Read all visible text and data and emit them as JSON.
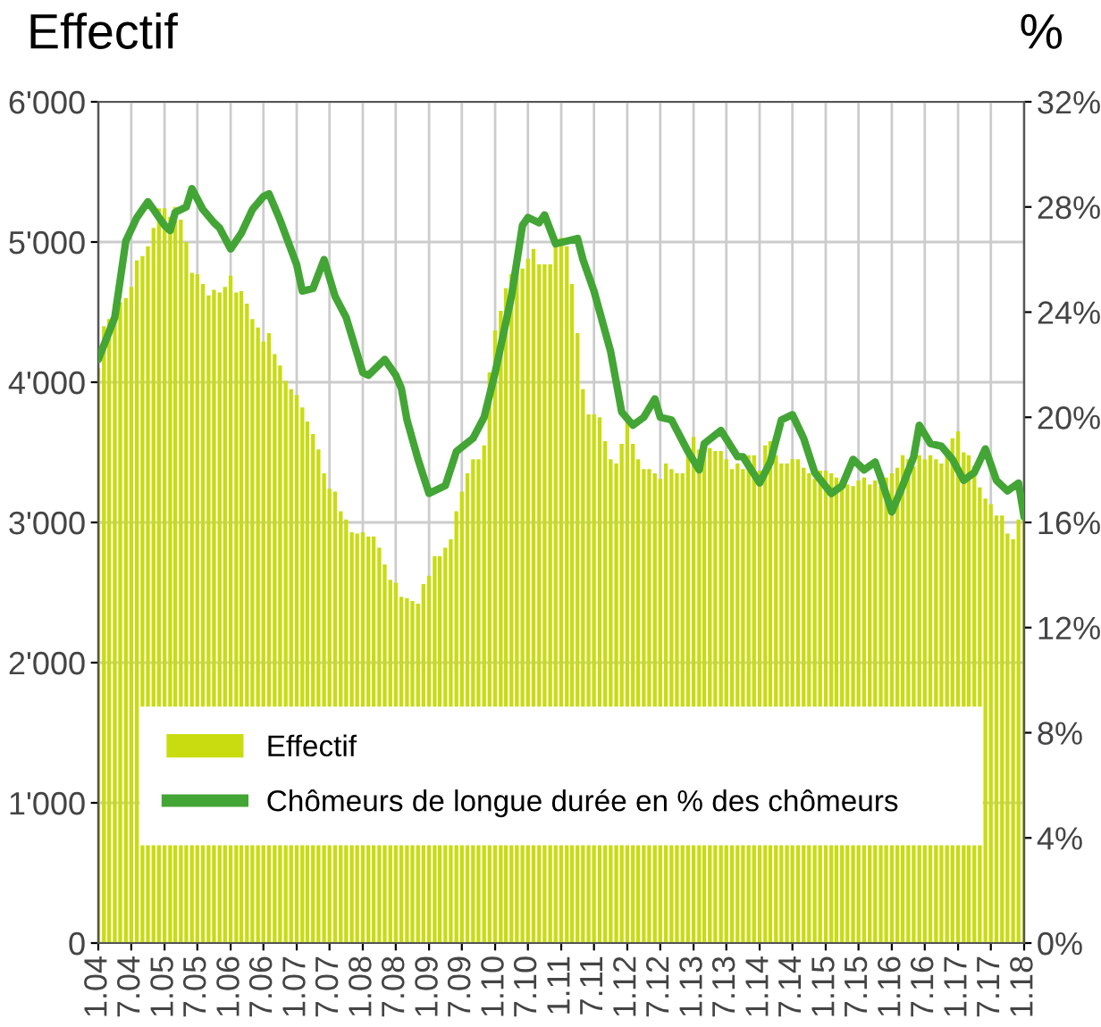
{
  "chart_data": {
    "type": "bar",
    "ylabel": "Effectif",
    "y2label": "%",
    "x": [
      "2004-01",
      "2004-02",
      "2004-03",
      "2004-04",
      "2004-05",
      "2004-06",
      "2004-07",
      "2004-08",
      "2004-09",
      "2004-10",
      "2004-11",
      "2004-12",
      "2005-01",
      "2005-02",
      "2005-03",
      "2005-04",
      "2005-05",
      "2005-06",
      "2005-07",
      "2005-08",
      "2005-09",
      "2005-10",
      "2005-11",
      "2005-12",
      "2006-01",
      "2006-02",
      "2006-03",
      "2006-04",
      "2006-05",
      "2006-06",
      "2006-07",
      "2006-08",
      "2006-09",
      "2006-10",
      "2006-11",
      "2006-12",
      "2007-01",
      "2007-02",
      "2007-03",
      "2007-04",
      "2007-05",
      "2007-06",
      "2007-07",
      "2007-08",
      "2007-09",
      "2007-10",
      "2007-11",
      "2007-12",
      "2008-01",
      "2008-02",
      "2008-03",
      "2008-04",
      "2008-05",
      "2008-06",
      "2008-07",
      "2008-08",
      "2008-09",
      "2008-10",
      "2008-11",
      "2008-12",
      "2009-01",
      "2009-02",
      "2009-03",
      "2009-04",
      "2009-05",
      "2009-06",
      "2009-07",
      "2009-08",
      "2009-09",
      "2009-10",
      "2009-11",
      "2009-12",
      "2010-01",
      "2010-02",
      "2010-03",
      "2010-04",
      "2010-05",
      "2010-06",
      "2010-07",
      "2010-08",
      "2010-09",
      "2010-10",
      "2010-11",
      "2010-12",
      "2011-01",
      "2011-02",
      "2011-03",
      "2011-04",
      "2011-05",
      "2011-06",
      "2011-07",
      "2011-08",
      "2011-09",
      "2011-10",
      "2011-11",
      "2011-12",
      "2012-01",
      "2012-02",
      "2012-03",
      "2012-04",
      "2012-05",
      "2012-06",
      "2012-07",
      "2012-08",
      "2012-09",
      "2012-10",
      "2012-11",
      "2012-12",
      "2013-01",
      "2013-02",
      "2013-03",
      "2013-04",
      "2013-05",
      "2013-06",
      "2013-07",
      "2013-08",
      "2013-09",
      "2013-10",
      "2013-11",
      "2013-12",
      "2014-01",
      "2014-02",
      "2014-03",
      "2014-04",
      "2014-05",
      "2014-06",
      "2014-07",
      "2014-08",
      "2014-09",
      "2014-10",
      "2014-11",
      "2014-12",
      "2015-01",
      "2015-02",
      "2015-03",
      "2015-04",
      "2015-05",
      "2015-06",
      "2015-07",
      "2015-08",
      "2015-09",
      "2015-10",
      "2015-11",
      "2015-12",
      "2016-01",
      "2016-02",
      "2016-03",
      "2016-04",
      "2016-05",
      "2016-06",
      "2016-07",
      "2016-08",
      "2016-09",
      "2016-10",
      "2016-11",
      "2016-12",
      "2017-01",
      "2017-02",
      "2017-03",
      "2017-04",
      "2017-05",
      "2017-06",
      "2017-07",
      "2017-08",
      "2017-09",
      "2017-10",
      "2017-11",
      "2017-12",
      "2018-01"
    ],
    "series": [
      {
        "name": "Effectif",
        "color": "#c8dc10",
        "values": [
          4100,
          4400,
          4450,
          4560,
          4570,
          4600,
          4680,
          4870,
          4900,
          4970,
          5100,
          5240,
          5240,
          5180,
          5250,
          5160,
          5000,
          4780,
          4770,
          4700,
          4620,
          4660,
          4640,
          4680,
          4760,
          4640,
          4650,
          4560,
          4450,
          4390,
          4290,
          4350,
          4200,
          4120,
          4010,
          3950,
          3910,
          3820,
          3720,
          3630,
          3520,
          3350,
          3240,
          3220,
          3080,
          3020,
          2930,
          2920,
          2930,
          2900,
          2900,
          2820,
          2700,
          2590,
          2570,
          2470,
          2460,
          2440,
          2420,
          2560,
          2620,
          2760,
          2760,
          2820,
          2880,
          3080,
          3220,
          3350,
          3450,
          3450,
          3550,
          4070,
          4370,
          4510,
          4670,
          4770,
          4800,
          4810,
          4880,
          4950,
          4840,
          4840,
          4840,
          4970,
          5030,
          4970,
          4700,
          4350,
          3950,
          3770,
          3770,
          3750,
          3580,
          3450,
          3420,
          3560,
          3730,
          3560,
          3450,
          3380,
          3380,
          3350,
          3310,
          3420,
          3380,
          3350,
          3350,
          3500,
          3610,
          3520,
          3540,
          3530,
          3510,
          3510,
          3450,
          3380,
          3420,
          3380,
          3480,
          3480,
          3370,
          3550,
          3580,
          3480,
          3420,
          3420,
          3450,
          3450,
          3390,
          3350,
          3310,
          3370,
          3370,
          3350,
          3320,
          3270,
          3270,
          3260,
          3300,
          3320,
          3270,
          3300,
          3260,
          3320,
          3350,
          3390,
          3480,
          3450,
          3400,
          3480,
          3450,
          3480,
          3450,
          3420,
          3500,
          3600,
          3650,
          3500,
          3480,
          3400,
          3250,
          3170,
          3130,
          3050,
          3050,
          2920,
          2880,
          3020,
          3020
        ]
      },
      {
        "name": "Chômeurs de longue durée en % des chômeurs",
        "type": "line",
        "axis": "y2",
        "color": "#43a535",
        "x": [
          "2004-01",
          "2004-04",
          "2004-06",
          "2004-08",
          "2004-10",
          "2004-11",
          "2005-01",
          "2005-02",
          "2005-03",
          "2005-05",
          "2005-06",
          "2005-08",
          "2005-10",
          "2005-11",
          "2006-01",
          "2006-03",
          "2006-05",
          "2006-07",
          "2006-08",
          "2006-10",
          "2007-01",
          "2007-02",
          "2007-04",
          "2007-06",
          "2007-08",
          "2007-10",
          "2008-01",
          "2008-02",
          "2008-05",
          "2008-07",
          "2008-08",
          "2008-09",
          "2008-11",
          "2009-01",
          "2009-04",
          "2009-06",
          "2009-09",
          "2009-11",
          "2010-01",
          "2010-04",
          "2010-06",
          "2010-07",
          "2010-09",
          "2010-10",
          "2010-12",
          "2011-02",
          "2011-04",
          "2011-05",
          "2011-07",
          "2011-10",
          "2011-12",
          "2012-02",
          "2012-04",
          "2012-06",
          "2012-07",
          "2012-09",
          "2012-12",
          "2013-02",
          "2013-03",
          "2013-06",
          "2013-09",
          "2013-10",
          "2014-01",
          "2014-03",
          "2014-05",
          "2014-07",
          "2014-09",
          "2014-11",
          "2015-02",
          "2015-04",
          "2015-06",
          "2015-08",
          "2015-10",
          "2015-11",
          "2016-01",
          "2016-03",
          "2016-05",
          "2016-06",
          "2016-08",
          "2016-10",
          "2016-12",
          "2017-02",
          "2017-04",
          "2017-06",
          "2017-08",
          "2017-10",
          "2017-12",
          "2018-01"
        ],
        "values": [
          22.2,
          23.8,
          26.7,
          27.6,
          28.2,
          27.9,
          27.3,
          27.1,
          27.8,
          28.0,
          28.7,
          27.9,
          27.4,
          27.2,
          26.4,
          27.0,
          27.9,
          28.4,
          28.5,
          27.5,
          25.8,
          24.8,
          24.9,
          26.0,
          24.6,
          23.8,
          21.7,
          21.6,
          22.2,
          21.6,
          21.1,
          19.9,
          18.4,
          17.1,
          17.4,
          18.7,
          19.2,
          20.0,
          21.7,
          24.6,
          27.3,
          27.6,
          27.4,
          27.7,
          26.6,
          26.7,
          26.8,
          26.0,
          24.8,
          22.5,
          20.2,
          19.7,
          20.0,
          20.7,
          20.0,
          19.9,
          18.7,
          18.0,
          19.0,
          19.5,
          18.5,
          18.5,
          17.5,
          18.3,
          19.9,
          20.1,
          19.2,
          17.9,
          17.1,
          17.4,
          18.4,
          18.0,
          18.3,
          17.7,
          16.4,
          17.4,
          18.5,
          19.7,
          19.0,
          18.9,
          18.4,
          17.6,
          17.9,
          18.8,
          17.6,
          17.2,
          17.5,
          16.2
        ]
      }
    ],
    "xlim": [
      "2004-01",
      "2018-01"
    ],
    "xticks": [
      {
        "value": "2004-01",
        "label": "1.04"
      },
      {
        "value": "2004-07",
        "label": "7.04"
      },
      {
        "value": "2005-01",
        "label": "1.05"
      },
      {
        "value": "2005-07",
        "label": "7.05"
      },
      {
        "value": "2006-01",
        "label": "1.06"
      },
      {
        "value": "2006-07",
        "label": "7.06"
      },
      {
        "value": "2007-01",
        "label": "1.07"
      },
      {
        "value": "2007-07",
        "label": "7.07"
      },
      {
        "value": "2008-01",
        "label": "1.08"
      },
      {
        "value": "2008-07",
        "label": "7.08"
      },
      {
        "value": "2009-01",
        "label": "1.09"
      },
      {
        "value": "2009-07",
        "label": "7.09"
      },
      {
        "value": "2010-01",
        "label": "1.10"
      },
      {
        "value": "2010-07",
        "label": "7.10"
      },
      {
        "value": "2011-01",
        "label": "1.11"
      },
      {
        "value": "2011-07",
        "label": "7.11"
      },
      {
        "value": "2012-01",
        "label": "1.12"
      },
      {
        "value": "2012-07",
        "label": "7.12"
      },
      {
        "value": "2013-01",
        "label": "1.13"
      },
      {
        "value": "2013-07",
        "label": "7.13"
      },
      {
        "value": "2014-01",
        "label": "1.14"
      },
      {
        "value": "2014-07",
        "label": "7.14"
      },
      {
        "value": "2015-01",
        "label": "1.15"
      },
      {
        "value": "2015-07",
        "label": "7.15"
      },
      {
        "value": "2016-01",
        "label": "1.16"
      },
      {
        "value": "2016-07",
        "label": "7.16"
      },
      {
        "value": "2017-01",
        "label": "1.17"
      },
      {
        "value": "2017-07",
        "label": "7.17"
      },
      {
        "value": "2018-01",
        "label": "1.18"
      }
    ],
    "ylim": [
      0,
      6000
    ],
    "yticks": [
      {
        "value": 0,
        "label": "0"
      },
      {
        "value": 1000,
        "label": "1'000"
      },
      {
        "value": 2000,
        "label": "2'000"
      },
      {
        "value": 3000,
        "label": "3'000"
      },
      {
        "value": 4000,
        "label": "4'000"
      },
      {
        "value": 5000,
        "label": "5'000"
      },
      {
        "value": 6000,
        "label": "6'000"
      }
    ],
    "y2lim": [
      0,
      32
    ],
    "y2ticks": [
      {
        "value": 0,
        "label": "0%"
      },
      {
        "value": 4,
        "label": "4%"
      },
      {
        "value": 8,
        "label": "8%"
      },
      {
        "value": 12,
        "label": "12%"
      },
      {
        "value": 16,
        "label": "16%"
      },
      {
        "value": 20,
        "label": "20%"
      },
      {
        "value": 24,
        "label": "24%"
      },
      {
        "value": 28,
        "label": "28%"
      },
      {
        "value": 32,
        "label": "32%"
      }
    ],
    "grid": true,
    "legend": "bottom",
    "marker": "none",
    "line_style": "solid"
  }
}
